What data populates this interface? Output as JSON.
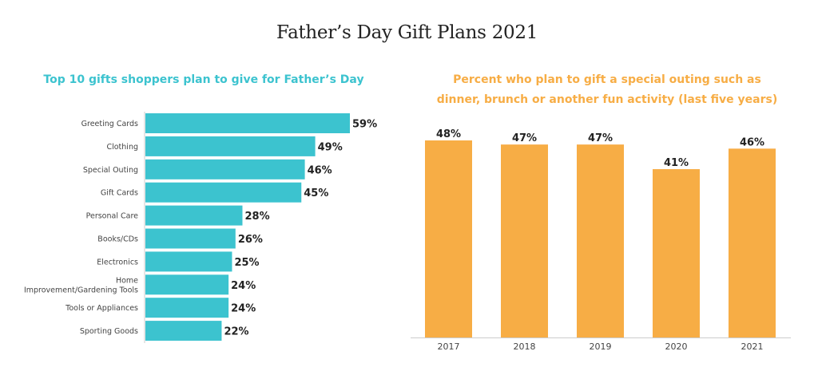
{
  "title": "Father’s Day Gift Plans 2021",
  "colors": {
    "teal": "#3cc3cf",
    "orange": "#f7ad45",
    "text": "#222222"
  },
  "chart_data": [
    {
      "type": "bar",
      "orientation": "horizontal",
      "title": "Top 10 gifts shoppers plan to give for Father’s Day",
      "categories": [
        [
          "Greeting Cards"
        ],
        [
          "Clothing"
        ],
        [
          "Special Outing"
        ],
        [
          "Gift Cards"
        ],
        [
          "Personal Care"
        ],
        [
          "Books/CDs"
        ],
        [
          "Electronics"
        ],
        [
          "Home",
          "Improvement/Gardening Tools"
        ],
        [
          "Tools or Appliances"
        ],
        [
          "Sporting Goods"
        ]
      ],
      "values": [
        59,
        49,
        46,
        45,
        28,
        26,
        25,
        24,
        24,
        22
      ],
      "value_labels": [
        "59%",
        "49%",
        "46%",
        "45%",
        "28%",
        "26%",
        "25%",
        "24%",
        "24%",
        "22%"
      ],
      "unit": "%",
      "xlim": [
        0,
        100
      ],
      "grid": false
    },
    {
      "type": "bar",
      "orientation": "vertical",
      "title_lines": [
        "Percent who plan to gift a special outing such as",
        "dinner, brunch or another fun activity (last five years)"
      ],
      "categories": [
        "2017",
        "2018",
        "2019",
        "2020",
        "2021"
      ],
      "values": [
        48,
        47,
        47,
        41,
        46
      ],
      "value_labels": [
        "48%",
        "47%",
        "47%",
        "41%",
        "46%"
      ],
      "unit": "%",
      "ylim": [
        0,
        50
      ],
      "grid": false
    }
  ]
}
